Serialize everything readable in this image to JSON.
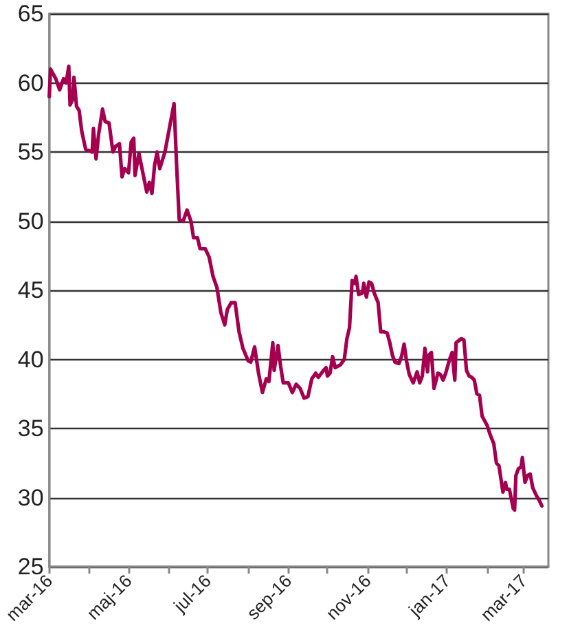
{
  "chart_data": {
    "type": "line",
    "color": "#a50050",
    "line_style": "solid",
    "marker": "none",
    "grid": "y",
    "xlim": [
      "2016-03-01",
      "2017-03-20"
    ],
    "xticks": [
      {
        "value": "2016-03-01",
        "label": "mar-16"
      },
      {
        "value": "2016-04-01",
        "label": null
      },
      {
        "value": "2016-05-01",
        "label": "maj-16"
      },
      {
        "value": "2016-06-01",
        "label": null
      },
      {
        "value": "2016-07-01",
        "label": "jul-16"
      },
      {
        "value": "2016-08-01",
        "label": null
      },
      {
        "value": "2016-09-01",
        "label": "sep-16"
      },
      {
        "value": "2016-10-01",
        "label": null
      },
      {
        "value": "2016-11-01",
        "label": "nov-16"
      },
      {
        "value": "2016-12-01",
        "label": null
      },
      {
        "value": "2017-01-01",
        "label": "jan-17"
      },
      {
        "value": "2017-02-01",
        "label": null
      },
      {
        "value": "2017-03-01",
        "label": "mar-17"
      }
    ],
    "ylim": [
      25,
      65
    ],
    "yticks": [
      25,
      30,
      35,
      40,
      45,
      50,
      55,
      60,
      65
    ],
    "x": [
      "2016-03-01",
      "2016-03-02",
      "2016-03-06",
      "2016-03-09",
      "2016-03-12",
      "2016-03-14",
      "2016-03-16",
      "2016-03-17",
      "2016-03-19",
      "2016-03-20",
      "2016-03-22",
      "2016-03-24",
      "2016-03-26",
      "2016-03-29",
      "2016-04-03",
      "2016-04-04",
      "2016-04-06",
      "2016-04-08",
      "2016-04-11",
      "2016-04-13",
      "2016-04-16",
      "2016-04-19",
      "2016-04-21",
      "2016-04-24",
      "2016-04-26",
      "2016-04-28",
      "2016-05-01",
      "2016-05-03",
      "2016-05-05",
      "2016-05-06",
      "2016-05-09",
      "2016-05-12",
      "2016-05-15",
      "2016-05-17",
      "2016-05-19",
      "2016-05-21",
      "2016-05-23",
      "2016-05-25",
      "2016-05-29",
      "2016-06-02",
      "2016-06-05",
      "2016-06-07",
      "2016-06-09",
      "2016-06-12",
      "2016-06-15",
      "2016-06-18",
      "2016-06-20",
      "2016-06-23",
      "2016-06-25",
      "2016-06-29",
      "2016-07-02",
      "2016-07-05",
      "2016-07-08",
      "2016-07-11",
      "2016-07-14",
      "2016-07-16",
      "2016-07-19",
      "2016-07-22",
      "2016-07-25",
      "2016-07-28",
      "2016-08-01",
      "2016-08-03",
      "2016-08-06",
      "2016-08-09",
      "2016-08-12",
      "2016-08-15",
      "2016-08-17",
      "2016-08-20",
      "2016-08-21",
      "2016-08-24",
      "2016-08-26",
      "2016-08-28",
      "2016-09-01",
      "2016-09-04",
      "2016-09-07",
      "2016-09-10",
      "2016-09-13",
      "2016-09-16",
      "2016-09-19",
      "2016-09-22",
      "2016-09-24",
      "2016-09-28",
      "2016-09-30",
      "2016-10-01",
      "2016-10-03",
      "2016-10-05",
      "2016-10-07",
      "2016-10-11",
      "2016-10-14",
      "2016-10-16",
      "2016-10-18",
      "2016-10-20",
      "2016-10-22",
      "2016-10-23",
      "2016-10-25",
      "2016-10-28",
      "2016-10-29",
      "2016-10-31",
      "2016-11-02",
      "2016-11-04",
      "2016-11-06",
      "2016-11-09",
      "2016-11-11",
      "2016-11-13",
      "2016-11-16",
      "2016-11-18",
      "2016-11-20",
      "2016-11-22",
      "2016-11-25",
      "2016-11-27",
      "2016-11-29",
      "2016-12-01",
      "2016-12-03",
      "2016-12-06",
      "2016-12-09",
      "2016-12-11",
      "2016-12-13",
      "2016-12-15",
      "2016-12-17",
      "2016-12-18",
      "2016-12-20",
      "2016-12-22",
      "2016-12-25",
      "2016-12-27",
      "2016-12-29",
      "2016-12-31",
      "2017-01-03",
      "2017-01-05",
      "2017-01-07",
      "2017-01-08",
      "2017-01-12",
      "2017-01-14",
      "2017-01-16",
      "2017-01-18",
      "2017-01-20",
      "2017-01-22",
      "2017-01-24",
      "2017-01-26",
      "2017-01-28",
      "2017-02-01",
      "2017-02-03",
      "2017-02-06",
      "2017-02-08",
      "2017-02-10",
      "2017-02-13",
      "2017-02-15",
      "2017-02-16",
      "2017-02-18",
      "2017-02-21",
      "2017-02-22",
      "2017-02-23",
      "2017-02-25",
      "2017-02-27",
      "2017-02-28",
      "2017-03-02",
      "2017-03-04",
      "2017-03-06",
      "2017-03-08",
      "2017-03-11",
      "2017-03-13",
      "2017-03-15"
    ],
    "values": [
      59,
      61,
      60.3,
      59.5,
      60.3,
      60,
      61.2,
      58.4,
      58.8,
      60.4,
      58.3,
      58,
      56.5,
      55.2,
      55,
      56.7,
      54.5,
      56.3,
      58.1,
      57.2,
      57.1,
      55,
      55.4,
      55.6,
      53.2,
      53.8,
      53.5,
      55.7,
      56,
      53.3,
      54.9,
      53.5,
      52.1,
      52.8,
      52,
      54,
      55,
      53.8,
      55,
      57,
      58.5,
      54,
      50.1,
      50,
      50.8,
      50,
      48.8,
      48.8,
      48,
      48,
      47.4,
      46,
      45.2,
      43.4,
      42.5,
      43.6,
      44.1,
      44.1,
      42,
      40.8,
      39.9,
      39.8,
      40.9,
      39,
      37.6,
      38.6,
      38.4,
      41.2,
      39.2,
      41,
      39.5,
      38.3,
      38.3,
      37.6,
      38.2,
      37.9,
      37.2,
      37.3,
      38.6,
      39,
      38.7,
      39.2,
      39.4,
      38.8,
      39,
      40.2,
      39.4,
      39.6,
      40,
      41.5,
      42.3,
      45.7,
      45.5,
      46,
      44.7,
      44.8,
      45.5,
      44.5,
      45.6,
      45.5,
      44.8,
      44.1,
      42,
      42,
      41.9,
      41.2,
      40.3,
      39.8,
      39.7,
      40.2,
      41.1,
      39.8,
      38.9,
      38.3,
      39.1,
      38.3,
      38.8,
      40.8,
      39.1,
      40.3,
      40.5,
      37.9,
      39,
      38.9,
      38.5,
      39,
      40,
      40.5,
      38.5,
      41.2,
      41.5,
      41.4,
      39.2,
      38.8,
      38.7,
      38.5,
      37.5,
      37.4,
      35.9,
      35.2,
      34.6,
      33.9,
      32.5,
      32.3,
      30.4,
      31.1,
      30.6,
      30.6,
      29.2,
      29.1,
      31.6,
      32.1,
      32.2,
      32.9,
      31.1,
      31.6,
      31.7,
      30.7,
      30.1,
      29.8,
      29.4
    ]
  }
}
